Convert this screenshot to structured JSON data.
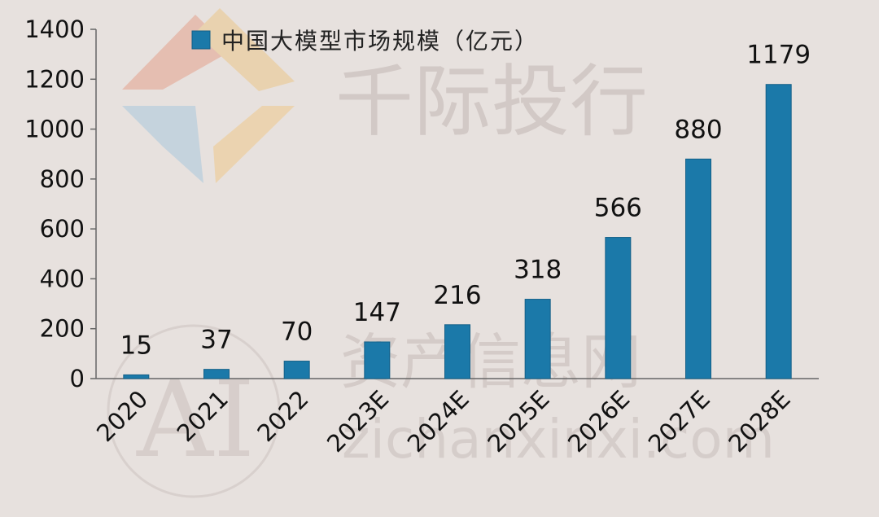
{
  "watermark": {
    "brand": "千际投行",
    "site_cn": "资产信息网",
    "logo_text": "AI",
    "url": "zichanxinxi.com"
  },
  "chart_data": {
    "type": "bar",
    "categories": [
      "2020",
      "2021",
      "2022",
      "2023E",
      "2024E",
      "2025E",
      "2026E",
      "2027E",
      "2028E"
    ],
    "series": [
      {
        "name": "中国大模型市场规模（亿元）",
        "values": [
          15,
          37,
          70,
          147,
          216,
          318,
          566,
          880,
          1179
        ]
      }
    ],
    "ylim": [
      0,
      1400
    ],
    "yticks": [
      0,
      200,
      400,
      600,
      800,
      1000,
      1200,
      1400
    ],
    "grid": false,
    "legend_position": "top-center",
    "data_labels": true,
    "colors": {
      "bar": "#1b79a9",
      "bar_edge": "#135f87",
      "axis": "#666666",
      "background": "#e7e1de"
    }
  }
}
